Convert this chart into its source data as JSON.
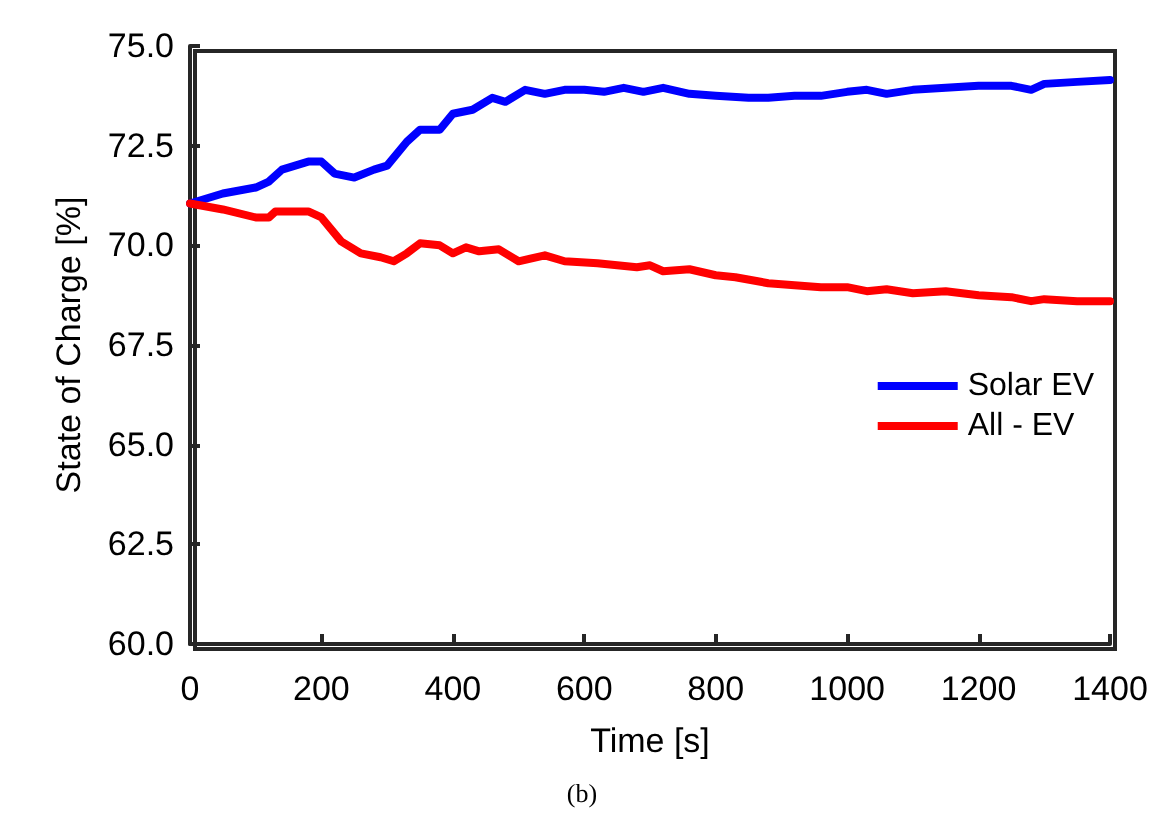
{
  "chart_data": {
    "type": "line",
    "xlabel": "Time [s]",
    "ylabel": "State of Charge [%]",
    "annotations": [
      "(b)"
    ],
    "xlim": [
      0,
      1400
    ],
    "xticks": [
      0,
      200,
      400,
      600,
      800,
      1000,
      1200,
      1400
    ],
    "ylim": [
      60,
      75
    ],
    "yticks": [
      {
        "value": 60,
        "label": "60.0"
      },
      {
        "value": 62.5,
        "label": "62.5"
      },
      {
        "value": 65,
        "label": "65.0"
      },
      {
        "value": 67.5,
        "label": "67.5"
      },
      {
        "value": 70,
        "label": "70.0"
      },
      {
        "value": 72.5,
        "label": "72.5"
      },
      {
        "value": 75,
        "label": "75.0"
      }
    ],
    "grid": false,
    "legend": "right",
    "marker": "none",
    "line_style": "solid",
    "series": [
      {
        "name": "Solar EV",
        "color": "#0000ff",
        "x": [
          0,
          50,
          100,
          120,
          140,
          180,
          200,
          220,
          250,
          280,
          300,
          330,
          350,
          380,
          400,
          430,
          460,
          480,
          510,
          540,
          570,
          600,
          630,
          660,
          690,
          720,
          760,
          800,
          850,
          880,
          920,
          960,
          1000,
          1030,
          1060,
          1100,
          1150,
          1200,
          1250,
          1280,
          1300,
          1350,
          1400
        ],
        "values": [
          71.05,
          71.3,
          71.45,
          71.6,
          71.9,
          72.1,
          72.1,
          71.8,
          71.7,
          71.9,
          72.0,
          72.6,
          72.9,
          72.9,
          73.3,
          73.4,
          73.7,
          73.6,
          73.9,
          73.8,
          73.9,
          73.9,
          73.85,
          73.95,
          73.85,
          73.95,
          73.8,
          73.75,
          73.7,
          73.7,
          73.75,
          73.75,
          73.85,
          73.9,
          73.8,
          73.9,
          73.95,
          74.0,
          74.0,
          73.9,
          74.05,
          74.1,
          74.15
        ]
      },
      {
        "name": "All - EV",
        "color": "#ff0000",
        "x": [
          0,
          50,
          100,
          120,
          130,
          180,
          200,
          230,
          260,
          290,
          310,
          330,
          350,
          380,
          400,
          420,
          440,
          470,
          500,
          540,
          570,
          620,
          650,
          680,
          700,
          720,
          760,
          800,
          830,
          880,
          920,
          960,
          1000,
          1030,
          1060,
          1100,
          1150,
          1200,
          1250,
          1280,
          1300,
          1350,
          1400
        ],
        "values": [
          71.05,
          70.9,
          70.7,
          70.7,
          70.85,
          70.85,
          70.7,
          70.1,
          69.8,
          69.7,
          69.6,
          69.8,
          70.05,
          70.0,
          69.8,
          69.95,
          69.85,
          69.9,
          69.6,
          69.75,
          69.6,
          69.55,
          69.5,
          69.45,
          69.5,
          69.35,
          69.4,
          69.25,
          69.2,
          69.05,
          69.0,
          68.95,
          68.95,
          68.85,
          68.9,
          68.8,
          68.85,
          68.75,
          68.7,
          68.6,
          68.65,
          68.6,
          68.6
        ]
      }
    ]
  }
}
